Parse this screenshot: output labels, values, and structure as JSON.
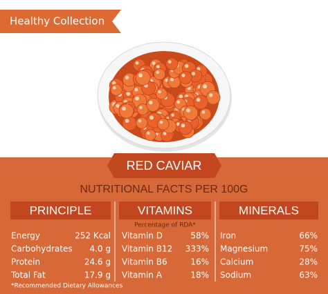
{
  "banner": "Healthy Collection",
  "product": "RED CAVIAR",
  "subtitle": "NUTRITIONAL FACTS PER 100G",
  "columns": [
    {
      "header": "PRINCIPLE",
      "rows": [
        [
          "Energy",
          "252 Kcal"
        ],
        [
          "Carbohydrates",
          "4.0 g"
        ],
        [
          "Protein",
          "24.6 g"
        ],
        [
          "Total Fat",
          "17.9 g"
        ]
      ]
    },
    {
      "header": "VITAMINS",
      "note": "Percentage of RDA*",
      "rows": [
        [
          "Vitamin D",
          "58%"
        ],
        [
          "Vitamin B12",
          "333%"
        ],
        [
          "Vitamin B6",
          "16%"
        ],
        [
          "Vitamin A",
          "18%"
        ]
      ]
    },
    {
      "header": "MINERALS",
      "rows": [
        [
          "Iron",
          "66%"
        ],
        [
          "Magnesium",
          "75%"
        ],
        [
          "Calcium",
          "28%"
        ],
        [
          "Sodium",
          "63%"
        ]
      ]
    }
  ],
  "footnote": "*Recommended Dietary Allowances"
}
